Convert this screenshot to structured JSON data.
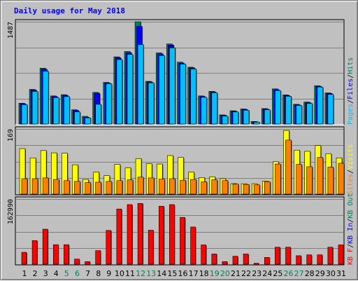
{
  "title": "Daily usage for May 2018",
  "colors": {
    "title": "#0000ff",
    "background": "#c0c0c0",
    "plot_bg": "#c0c0c0",
    "grid": "#808080",
    "hits": "#00805c",
    "files": "#0000ff",
    "pages": "#00c0ff",
    "visits": "#ffff00",
    "sites": "#ff8000",
    "kbin": "#ff0000",
    "weekend": "#00805c",
    "weekday": "#000000"
  },
  "legend": {
    "hits": "Hits",
    "files": "Files",
    "pages": "Pages",
    "visits": "Visits",
    "sites": "Sites",
    "kbout": "KB Out",
    "kbin": "KB In",
    "kbf": "KB F",
    "sep": "/"
  },
  "chart_data": [
    {
      "type": "bar",
      "panel": "hits-files-pages",
      "ymax_label": "1487",
      "ylim": [
        0,
        1487
      ],
      "categories": [
        "1",
        "2",
        "3",
        "4",
        "5",
        "6",
        "7",
        "8",
        "9",
        "10",
        "11",
        "12",
        "13",
        "14",
        "15",
        "16",
        "17",
        "18",
        "19",
        "20",
        "21",
        "22",
        "23",
        "24",
        "25",
        "26",
        "27",
        "28",
        "29",
        "30",
        "31"
      ],
      "weekend_days": [
        "5",
        "6",
        "12",
        "13",
        "19",
        "20",
        "26",
        "27"
      ],
      "series": [
        {
          "name": "Hits",
          "values": [
            302,
            504,
            812,
            409,
            427,
            208,
            112,
            460,
            606,
            977,
            1054,
            1487,
            621,
            1034,
            1164,
            900,
            826,
            409,
            475,
            133,
            193,
            220,
            37,
            225,
            511,
            424,
            287,
            320,
            557,
            452,
            0
          ]
        },
        {
          "name": "Files",
          "values": [
            295,
            495,
            798,
            399,
            416,
            198,
            100,
            448,
            596,
            964,
            1039,
            1420,
            612,
            1020,
            1148,
            885,
            816,
            399,
            467,
            126,
            185,
            210,
            31,
            217,
            499,
            414,
            279,
            310,
            548,
            446,
            0
          ]
        },
        {
          "name": "Pages",
          "values": [
            281,
            474,
            768,
            385,
            398,
            177,
            89,
            287,
            586,
            937,
            1012,
            1155,
            599,
            996,
            1107,
            871,
            800,
            389,
            455,
            116,
            175,
            201,
            28,
            208,
            487,
            404,
            271,
            300,
            538,
            431,
            0
          ]
        }
      ]
    },
    {
      "type": "bar",
      "panel": "visits-sites",
      "ymax_label": "169",
      "ylim": [
        0,
        169
      ],
      "categories": [
        "1",
        "2",
        "3",
        "4",
        "5",
        "6",
        "7",
        "8",
        "9",
        "10",
        "11",
        "12",
        "13",
        "14",
        "15",
        "16",
        "17",
        "18",
        "19",
        "20",
        "21",
        "22",
        "23",
        "24",
        "25",
        "26",
        "27",
        "28",
        "29",
        "30",
        "31"
      ],
      "series": [
        {
          "name": "Visits",
          "values": [
            118,
            94,
            113,
            107,
            106,
            76,
            38,
            57,
            48,
            77,
            68,
            92,
            79,
            78,
            100,
            95,
            57,
            43,
            45,
            40,
            27,
            27,
            27,
            34,
            84,
            165,
            114,
            111,
            126,
            105,
            94
          ]
        },
        {
          "name": "Sites",
          "values": [
            40,
            40,
            42,
            38,
            35,
            33,
            30,
            31,
            33,
            35,
            37,
            44,
            42,
            39,
            40,
            36,
            38,
            32,
            37,
            35,
            26,
            25,
            24,
            32,
            78,
            140,
            77,
            71,
            95,
            70,
            80
          ]
        }
      ]
    },
    {
      "type": "bar",
      "panel": "kb",
      "ymax_label": "162990",
      "ylim": [
        0,
        162990
      ],
      "categories": [
        "1",
        "2",
        "3",
        "4",
        "5",
        "6",
        "7",
        "8",
        "9",
        "10",
        "11",
        "12",
        "13",
        "14",
        "15",
        "16",
        "17",
        "18",
        "19",
        "20",
        "21",
        "22",
        "23",
        "24",
        "25",
        "26",
        "27",
        "28",
        "29",
        "30",
        "31"
      ],
      "series": [
        {
          "name": "KB F",
          "values": [
            29700,
            59000,
            87600,
            48800,
            48800,
            12800,
            6400,
            34000,
            84400,
            138000,
            149000,
            152000,
            85000,
            145000,
            149000,
            117000,
            93000,
            48200,
            25500,
            6400,
            19800,
            25500,
            2200,
            17000,
            42500,
            42500,
            21200,
            23400,
            23400,
            42500,
            48200
          ]
        }
      ]
    }
  ]
}
